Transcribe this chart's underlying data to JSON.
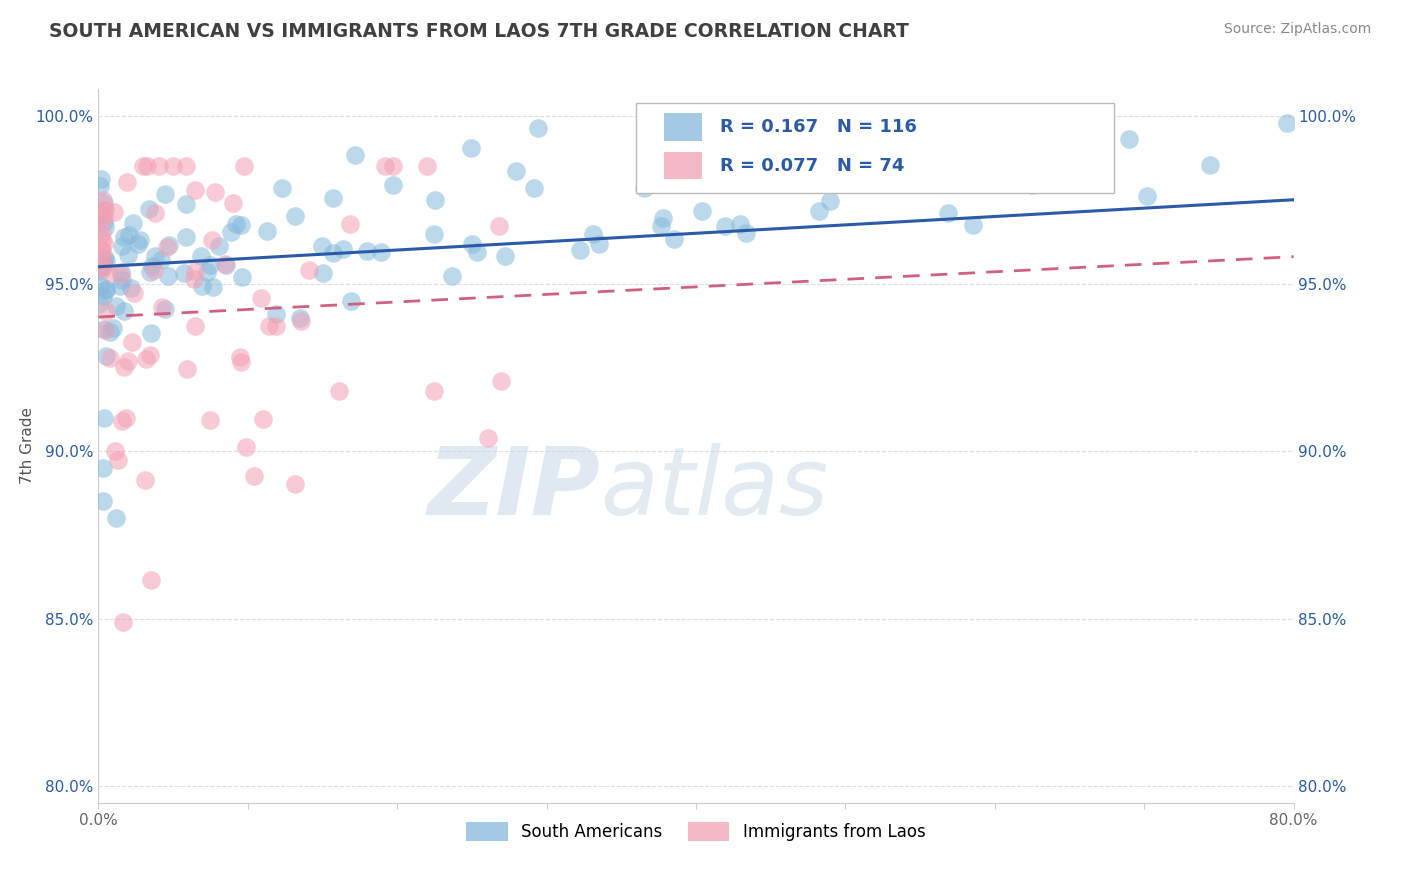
{
  "title": "SOUTH AMERICAN VS IMMIGRANTS FROM LAOS 7TH GRADE CORRELATION CHART",
  "source": "Source: ZipAtlas.com",
  "ylabel": "7th Grade",
  "xmin": 0.0,
  "xmax": 0.8,
  "ymin": 0.795,
  "ymax": 1.008,
  "yticks": [
    0.8,
    0.85,
    0.9,
    0.95,
    1.0
  ],
  "ytick_labels": [
    "80.0%",
    "85.0%",
    "90.0%",
    "95.0%",
    "100.0%"
  ],
  "xticks": [
    0.0,
    0.1,
    0.2,
    0.3,
    0.4,
    0.5,
    0.6,
    0.7,
    0.8
  ],
  "xtick_labels": [
    "0.0%",
    "",
    "",
    "",
    "",
    "",
    "",
    "",
    "80.0%"
  ],
  "legend_blue_label": "South Americans",
  "legend_pink_label": "Immigrants from Laos",
  "r_blue": 0.167,
  "n_blue": 116,
  "r_pink": 0.077,
  "n_pink": 74,
  "blue_color": "#85B8DC",
  "pink_color": "#F2A0B5",
  "blue_line_color": "#2B5BA8",
  "pink_line_color": "#D06080",
  "watermark_zip": "ZIP",
  "watermark_atlas": "atlas",
  "title_color": "#404040"
}
